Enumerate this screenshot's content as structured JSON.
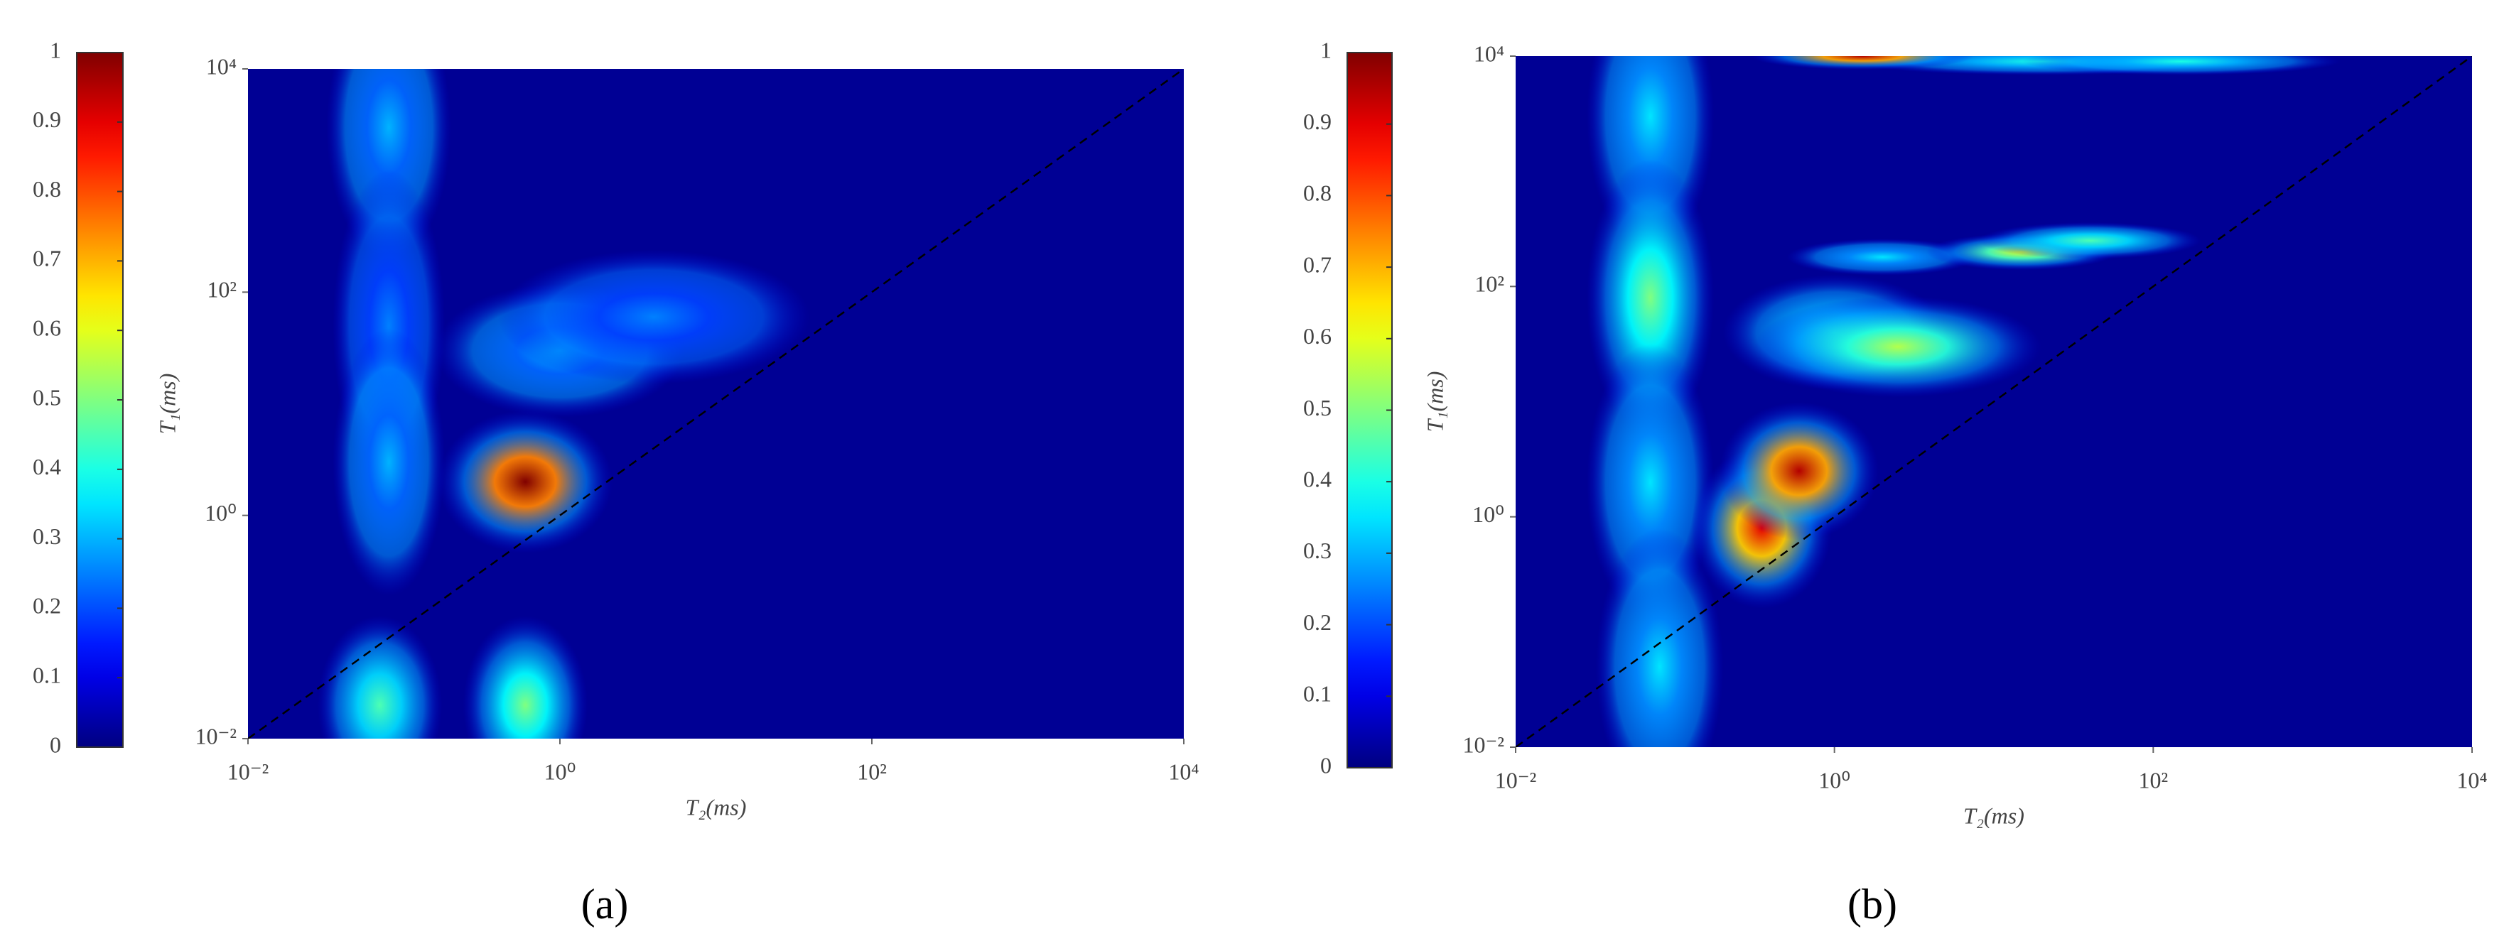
{
  "chart_data": [
    {
      "type": "heatmap",
      "panel_label": "(a)",
      "xlabel": "T₂(ms)",
      "ylabel": "T₁(ms)",
      "xlim": [
        0.01,
        10000
      ],
      "ylim": [
        0.01,
        10000
      ],
      "log_x": true,
      "log_y": true,
      "diagonal": true,
      "xticks": [
        {
          "value": 0.01,
          "label": "10⁻²"
        },
        {
          "value": 1,
          "label": "10⁰"
        },
        {
          "value": 100,
          "label": "10²"
        },
        {
          "value": 10000,
          "label": "10⁴"
        }
      ],
      "yticks": [
        {
          "value": 0.01,
          "label": "10⁻²"
        },
        {
          "value": 1,
          "label": "10⁰"
        },
        {
          "value": 100,
          "label": "10²"
        },
        {
          "value": 10000,
          "label": "10⁴"
        }
      ],
      "colorbar": {
        "lim": [
          0,
          1
        ],
        "ticks": [
          0,
          0.1,
          0.2,
          0.3,
          0.4,
          0.5,
          0.6,
          0.7,
          0.8,
          0.9,
          1
        ]
      },
      "peaks": [
        {
          "x": 0.08,
          "y": 3000,
          "value": 0.3,
          "x_spread": 0.2,
          "y_spread": 0.6
        },
        {
          "x": 0.08,
          "y": 50,
          "value": 0.25,
          "x_spread": 0.18,
          "y_spread": 0.7
        },
        {
          "x": 0.08,
          "y": 3,
          "value": 0.3,
          "x_spread": 0.18,
          "y_spread": 0.6
        },
        {
          "x": 0.07,
          "y": 0.02,
          "value": 0.45,
          "x_spread": 0.2,
          "y_spread": 0.4
        },
        {
          "x": 1,
          "y": 30,
          "value": 0.3,
          "x_spread": 0.4,
          "y_spread": 0.3
        },
        {
          "x": 4,
          "y": 60,
          "value": 0.25,
          "x_spread": 0.5,
          "y_spread": 0.3
        },
        {
          "x": 0.6,
          "y": 0.02,
          "value": 0.5,
          "x_spread": 0.2,
          "y_spread": 0.4
        },
        {
          "x": 0.6,
          "y": 2,
          "value": 1.0,
          "x_spread": 0.28,
          "y_spread": 0.32
        }
      ]
    },
    {
      "type": "heatmap",
      "panel_label": "(b)",
      "xlabel": "T₂(ms)",
      "ylabel": "T₁(ms)",
      "xlim": [
        0.01,
        10000
      ],
      "ylim": [
        0.01,
        10000
      ],
      "log_x": true,
      "log_y": true,
      "diagonal": true,
      "xticks": [
        {
          "value": 0.01,
          "label": "10⁻²"
        },
        {
          "value": 1,
          "label": "10⁰"
        },
        {
          "value": 100,
          "label": "10²"
        },
        {
          "value": 10000,
          "label": "10⁴"
        }
      ],
      "yticks": [
        {
          "value": 0.01,
          "label": "10⁻²"
        },
        {
          "value": 1,
          "label": "10⁰"
        },
        {
          "value": 100,
          "label": "10²"
        },
        {
          "value": 10000,
          "label": "10⁴"
        }
      ],
      "colorbar": {
        "lim": [
          0,
          1
        ],
        "ticks": [
          0,
          0.1,
          0.2,
          0.3,
          0.4,
          0.5,
          0.6,
          0.7,
          0.8,
          0.9,
          1
        ]
      },
      "peaks": [
        {
          "x": 0.07,
          "y": 3000,
          "value": 0.35,
          "x_spread": 0.2,
          "y_spread": 0.6
        },
        {
          "x": 0.07,
          "y": 80,
          "value": 0.5,
          "x_spread": 0.2,
          "y_spread": 0.6
        },
        {
          "x": 0.07,
          "y": 2,
          "value": 0.35,
          "x_spread": 0.2,
          "y_spread": 0.6
        },
        {
          "x": 0.08,
          "y": 0.05,
          "value": 0.35,
          "x_spread": 0.2,
          "y_spread": 0.6
        },
        {
          "x": 1,
          "y": 40,
          "value": 0.4,
          "x_spread": 0.35,
          "y_spread": 0.25
        },
        {
          "x": 2.5,
          "y": 30,
          "value": 0.55,
          "x_spread": 0.45,
          "y_spread": 0.22
        },
        {
          "x": 2,
          "y": 180,
          "value": 0.35,
          "x_spread": 0.3,
          "y_spread": 0.08
        },
        {
          "x": 15,
          "y": 200,
          "value": 0.6,
          "x_spread": 0.3,
          "y_spread": 0.08
        },
        {
          "x": 40,
          "y": 250,
          "value": 0.45,
          "x_spread": 0.35,
          "y_spread": 0.08
        },
        {
          "x": 20,
          "y": 9000,
          "value": 0.4,
          "x_spread": 0.6,
          "y_spread": 0.06
        },
        {
          "x": 150,
          "y": 9000,
          "value": 0.4,
          "x_spread": 0.5,
          "y_spread": 0.06
        },
        {
          "x": 1.5,
          "y": 10000,
          "value": 0.95,
          "x_spread": 0.35,
          "y_spread": 0.06
        },
        {
          "x": 0.35,
          "y": 0.8,
          "value": 0.9,
          "x_spread": 0.22,
          "y_spread": 0.35
        },
        {
          "x": 0.6,
          "y": 2.5,
          "value": 0.95,
          "x_spread": 0.25,
          "y_spread": 0.3
        }
      ]
    }
  ]
}
